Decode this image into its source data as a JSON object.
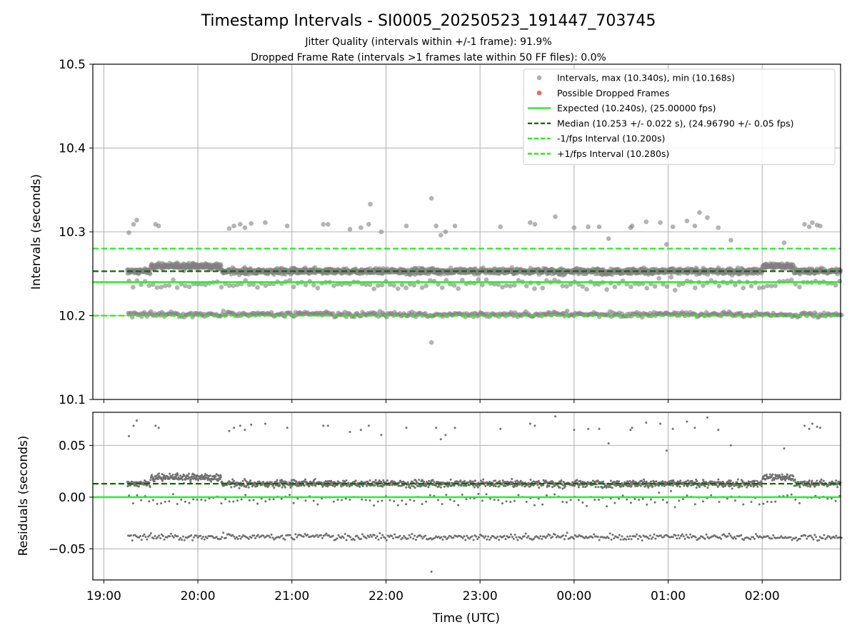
{
  "header": {
    "title": "Timestamp Intervals - SI0005_20250523_191447_703745",
    "subtitle_1": "Jitter Quality (intervals within +/-1 frame): 91.9%",
    "subtitle_2": "Dropped Frame Rate (intervals >1 frames late within 50 FF files): 0.0%"
  },
  "colors": {
    "points": "#808080",
    "dropped": "#ee5555",
    "expected": "#22ee22",
    "median": "#0a6b0a",
    "interval": "#22ee22",
    "grid": "#b0b0b0"
  },
  "chart_data": [
    {
      "type": "scatter",
      "ylabel": "Intervals (seconds)",
      "ylim": [
        10.1,
        10.5
      ],
      "yticks": [
        "10.1",
        "10.2",
        "10.3",
        "10.4",
        "10.5"
      ],
      "grid": true,
      "legend_position": "top-right",
      "legend": [
        {
          "label": "Intervals, max (10.340s), min (10.168s)",
          "kind": "marker",
          "color": "#9a9a9a"
        },
        {
          "label": "Possible Dropped Frames",
          "kind": "marker",
          "color": "#ee5555"
        },
        {
          "label": "Expected (10.240s), (25.00000 fps)",
          "kind": "solid",
          "color": "#22ee22"
        },
        {
          "label": "Median (10.253 +/- 0.022 s), (24.96790 +/- 0.05 fps)",
          "kind": "dashed",
          "color": "#0a6b0a"
        },
        {
          "label": "-1/fps Interval (10.200s)",
          "kind": "dashed",
          "color": "#22ee22"
        },
        {
          "label": "+1/fps Interval (10.280s)",
          "kind": "dashed",
          "color": "#22ee22"
        }
      ],
      "reference_lines": {
        "expected": 10.24,
        "median": 10.253,
        "minus_interval": 10.2,
        "plus_interval": 10.28
      },
      "series": [
        {
          "name": "Intervals",
          "x_start": "19:15",
          "x_end": "02:50",
          "typical_value": 10.253,
          "max": 10.34,
          "min": 10.168,
          "outlier_points": [
            {
              "x": "19:16",
              "y": 10.299
            },
            {
              "x": "19:19",
              "y": 10.309
            },
            {
              "x": "19:21",
              "y": 10.314
            },
            {
              "x": "19:33",
              "y": 10.309
            },
            {
              "x": "19:35",
              "y": 10.307
            },
            {
              "x": "20:20",
              "y": 10.304
            },
            {
              "x": "20:23",
              "y": 10.307
            },
            {
              "x": "20:27",
              "y": 10.309
            },
            {
              "x": "20:30",
              "y": 10.305
            },
            {
              "x": "20:34",
              "y": 10.31
            },
            {
              "x": "20:43",
              "y": 10.311
            },
            {
              "x": "20:57",
              "y": 10.307
            },
            {
              "x": "21:20",
              "y": 10.309
            },
            {
              "x": "21:23",
              "y": 10.309
            },
            {
              "x": "21:37",
              "y": 10.303
            },
            {
              "x": "21:44",
              "y": 10.305
            },
            {
              "x": "21:49",
              "y": 10.309
            },
            {
              "x": "21:50",
              "y": 10.333
            },
            {
              "x": "21:57",
              "y": 10.3
            },
            {
              "x": "22:13",
              "y": 10.307
            },
            {
              "x": "22:29",
              "y": 10.34
            },
            {
              "x": "22:32",
              "y": 10.307
            },
            {
              "x": "22:35",
              "y": 10.296
            },
            {
              "x": "22:38",
              "y": 10.3
            },
            {
              "x": "22:44",
              "y": 10.307
            },
            {
              "x": "23:13",
              "y": 10.306
            },
            {
              "x": "23:32",
              "y": 10.311
            },
            {
              "x": "23:35",
              "y": 10.309
            },
            {
              "x": "23:48",
              "y": 10.318
            },
            {
              "x": "24:00",
              "y": 10.305
            },
            {
              "x": "24:09",
              "y": 10.306
            },
            {
              "x": "24:16",
              "y": 10.306
            },
            {
              "x": "24:22",
              "y": 10.292
            },
            {
              "x": "24:36",
              "y": 10.305
            },
            {
              "x": "24:37",
              "y": 10.307
            },
            {
              "x": "24:46",
              "y": 10.312
            },
            {
              "x": "24:55",
              "y": 10.311
            },
            {
              "x": "24:59",
              "y": 10.285
            },
            {
              "x": "25:03",
              "y": 10.306
            },
            {
              "x": "25:12",
              "y": 10.313
            },
            {
              "x": "25:17",
              "y": 10.307
            },
            {
              "x": "25:20",
              "y": 10.323
            },
            {
              "x": "25:25",
              "y": 10.317
            },
            {
              "x": "25:32",
              "y": 10.305
            },
            {
              "x": "25:40",
              "y": 10.29
            },
            {
              "x": "26:14",
              "y": 10.287
            },
            {
              "x": "26:27",
              "y": 10.309
            },
            {
              "x": "26:30",
              "y": 10.306
            },
            {
              "x": "26:32",
              "y": 10.311
            },
            {
              "x": "26:35",
              "y": 10.308
            },
            {
              "x": "26:37",
              "y": 10.307
            },
            {
              "x": "22:29",
              "y": 10.168
            }
          ]
        }
      ]
    },
    {
      "type": "scatter",
      "xlabel": "Time (UTC)",
      "ylabel": "Residuals (seconds)",
      "ylim": [
        -0.08,
        0.082
      ],
      "yticks": [
        "−0.05",
        "0.00",
        "0.05"
      ],
      "xlim": [
        "18:53",
        "02:50"
      ],
      "xticks": [
        "19:00",
        "20:00",
        "21:00",
        "22:00",
        "23:00",
        "00:00",
        "01:00",
        "02:00"
      ],
      "grid": true,
      "reference_lines": {
        "expected": 0.0,
        "median": 0.013
      },
      "series": [
        {
          "name": "Residuals",
          "typical_value": 0.013,
          "max": 0.1,
          "min": -0.072
        }
      ]
    }
  ]
}
